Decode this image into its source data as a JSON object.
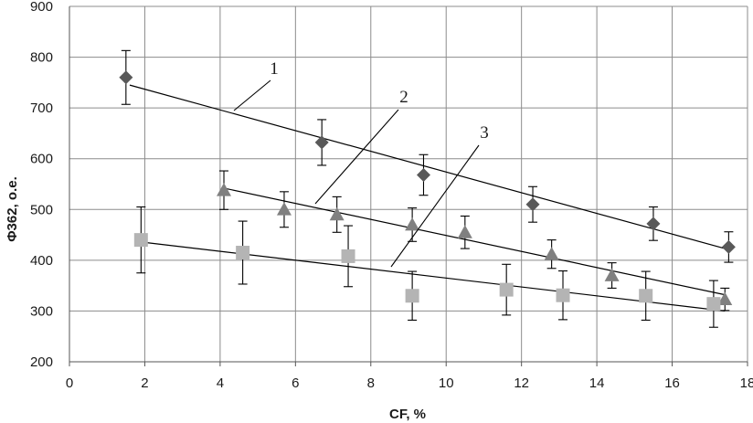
{
  "chart_data": {
    "type": "scatter",
    "title": "",
    "xlabel": "CF, %",
    "ylabel": "Φ362, o.e.",
    "xlim": [
      0,
      18
    ],
    "ylim": [
      200,
      900
    ],
    "x_ticks": [
      "0",
      "2",
      "4",
      "6",
      "8",
      "10",
      "12",
      "14",
      "16",
      "18"
    ],
    "y_ticks": [
      "200",
      "300",
      "400",
      "500",
      "600",
      "700",
      "800",
      "900"
    ],
    "grid": true,
    "legend": "none",
    "colors": {
      "series1": "#595959",
      "series2": "#808080",
      "series3": "#b4b4b4",
      "line": "#000000"
    },
    "series": [
      {
        "marker": "diamond",
        "label": "1",
        "x": [
          1.5,
          6.7,
          9.4,
          12.3,
          15.5,
          17.5
        ],
        "y": [
          760,
          632,
          568,
          510,
          472,
          426
        ],
        "err": [
          53,
          45,
          40,
          35,
          33,
          30
        ],
        "trend": [
          [
            1.6,
            745
          ],
          [
            17.5,
            421
          ]
        ]
      },
      {
        "marker": "triangle",
        "label": "2",
        "x": [
          4.1,
          5.7,
          7.1,
          9.1,
          10.5,
          12.8,
          14.4,
          17.4
        ],
        "y": [
          538,
          500,
          490,
          470,
          455,
          412,
          370,
          323
        ],
        "err": [
          38,
          35,
          35,
          33,
          32,
          28,
          25,
          22
        ],
        "trend": [
          [
            4.1,
            542
          ],
          [
            17.4,
            332
          ]
        ]
      },
      {
        "marker": "square",
        "label": "3",
        "x": [
          1.9,
          4.6,
          7.4,
          9.1,
          11.6,
          13.1,
          15.3,
          17.1
        ],
        "y": [
          440,
          415,
          408,
          330,
          342,
          331,
          330,
          314
        ],
        "err": [
          65,
          62,
          60,
          48,
          50,
          48,
          48,
          46
        ],
        "trend": [
          [
            1.9,
            436
          ],
          [
            17.4,
            300
          ]
        ]
      }
    ],
    "annotations": [
      {
        "text": "1",
        "target_series": 0
      },
      {
        "text": "2",
        "target_series": 1
      },
      {
        "text": "3",
        "target_series": 2
      }
    ]
  }
}
